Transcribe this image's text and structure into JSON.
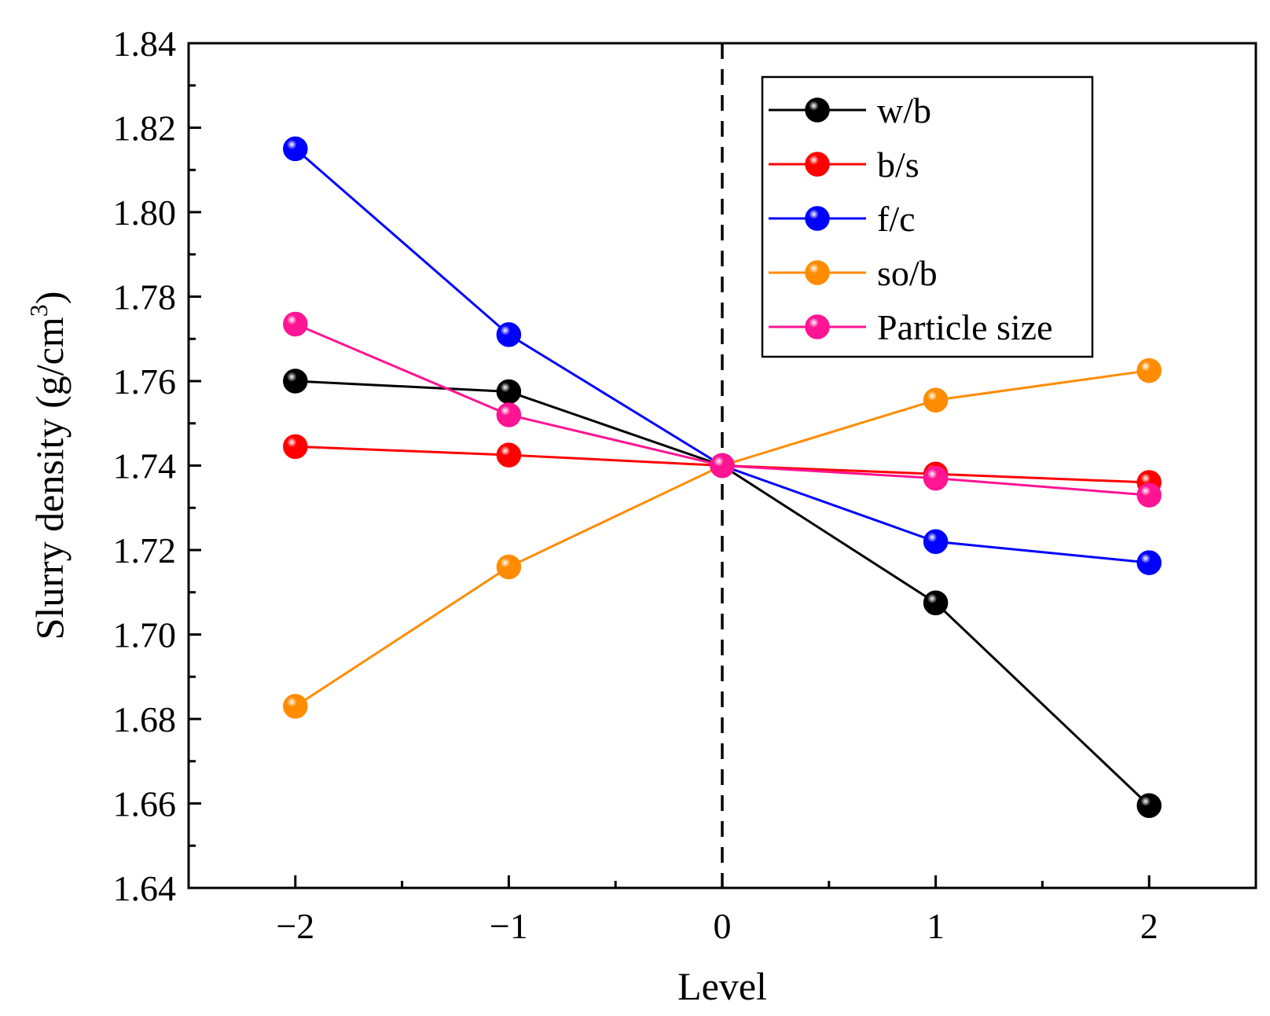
{
  "chart_data": {
    "type": "line",
    "title": "",
    "xlabel": "Level",
    "ylabel": {
      "main": "Slurry density (g/cm",
      "superscript": "3",
      "close": ")"
    },
    "xlim": [
      -2.5,
      2.5
    ],
    "ylim": [
      1.64,
      1.84
    ],
    "x": [
      -2,
      -1,
      0,
      1,
      2
    ],
    "x_tick_labels": [
      "−2",
      "−1",
      "0",
      "1",
      "2"
    ],
    "y_ticks": [
      1.64,
      1.66,
      1.68,
      1.7,
      1.72,
      1.74,
      1.76,
      1.78,
      1.8,
      1.82,
      1.84
    ],
    "y_tick_labels": [
      "1.64",
      "1.66",
      "1.68",
      "1.70",
      "1.72",
      "1.74",
      "1.76",
      "1.78",
      "1.80",
      "1.82",
      "1.84"
    ],
    "reference_line": {
      "x": 0,
      "style": "dashed"
    },
    "legend_position": "top-right",
    "series": [
      {
        "name": "w/b",
        "color": "#000000",
        "values": [
          1.76,
          1.7575,
          1.74,
          1.7075,
          1.6595
        ]
      },
      {
        "name": "b/s",
        "color": "#ff0000",
        "values": [
          1.7445,
          1.7425,
          1.74,
          1.738,
          1.736
        ]
      },
      {
        "name": "f/c",
        "color": "#0000ff",
        "values": [
          1.815,
          1.771,
          1.74,
          1.722,
          1.717
        ]
      },
      {
        "name": "so/b",
        "color": "#ff8c00",
        "values": [
          1.683,
          1.716,
          1.74,
          1.7555,
          1.7625
        ]
      },
      {
        "name": "Particle size",
        "color": "#ff1493",
        "values": [
          1.7735,
          1.752,
          1.74,
          1.737,
          1.733
        ]
      }
    ]
  }
}
